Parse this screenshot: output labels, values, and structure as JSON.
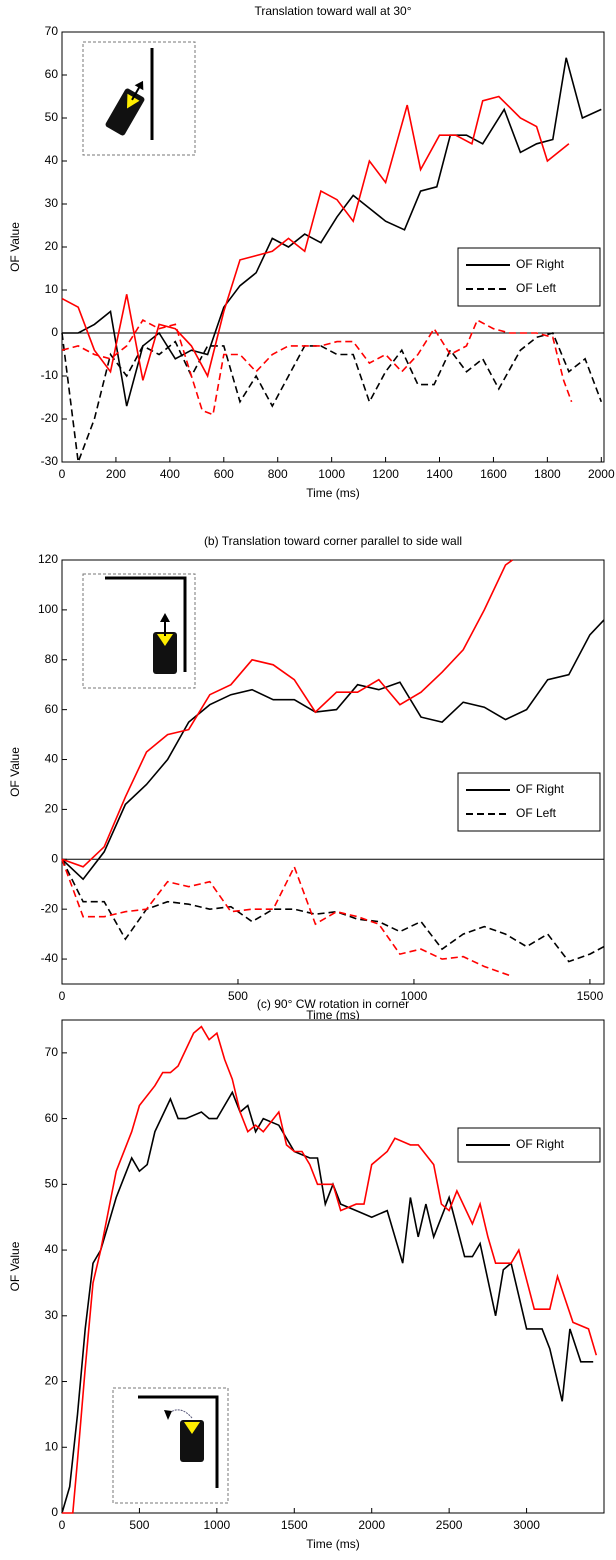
{
  "chart_data": [
    {
      "type": "line",
      "title": "Translation toward wall at 30°",
      "xlabel": "Time (ms)",
      "ylabel": "OF Value",
      "xlim": [
        0,
        2010
      ],
      "ylim": [
        -30,
        70
      ],
      "xticks": [
        0,
        200,
        400,
        600,
        800,
        1000,
        1200,
        1400,
        1600,
        1800,
        2000
      ],
      "yticks": [
        -30,
        -20,
        -10,
        0,
        10,
        20,
        30,
        40,
        50,
        60,
        70
      ],
      "hline": 0,
      "legend": "center right",
      "series": [
        {
          "name": "OF Right",
          "color": "#000000",
          "dash": false,
          "x": [
            0,
            60,
            120,
            180,
            240,
            300,
            360,
            420,
            480,
            540,
            600,
            660,
            720,
            780,
            840,
            900,
            960,
            1020,
            1080,
            1140,
            1200,
            1270,
            1330,
            1390,
            1440,
            1500,
            1560,
            1640,
            1700,
            1760,
            1820,
            1870,
            1930,
            2000
          ],
          "values": [
            0,
            0,
            2,
            5,
            -17,
            -3,
            0,
            -6,
            -4,
            -5,
            6,
            11,
            14,
            22,
            20,
            23,
            21,
            27,
            32,
            29,
            26,
            24,
            33,
            34,
            46,
            46,
            44,
            52,
            42,
            44,
            45,
            64,
            50,
            52
          ]
        },
        {
          "name": "OF Left",
          "color": "#000000",
          "dash": true,
          "x": [
            0,
            60,
            120,
            180,
            240,
            300,
            360,
            420,
            480,
            540,
            600,
            660,
            720,
            780,
            840,
            900,
            960,
            1020,
            1080,
            1140,
            1200,
            1260,
            1320,
            1380,
            1440,
            1500,
            1560,
            1620,
            1700,
            1760,
            1820,
            1880,
            1940,
            2000
          ],
          "values": [
            0,
            -30,
            -20,
            -5,
            -10,
            -3,
            -5,
            -2,
            -10,
            -3,
            -3,
            -16,
            -10,
            -17,
            -10,
            -3,
            -3,
            -5,
            -5,
            -16,
            -9,
            -4,
            -12,
            -12,
            -4,
            -9,
            -6,
            -13,
            -4,
            -1,
            0,
            -9,
            -6,
            -16
          ]
        },
        {
          "color": "#ff0000",
          "dash": false,
          "x": [
            0,
            60,
            120,
            180,
            240,
            300,
            360,
            420,
            480,
            540,
            600,
            660,
            720,
            780,
            840,
            900,
            960,
            1020,
            1080,
            1140,
            1200,
            1280,
            1330,
            1400,
            1460,
            1520,
            1560,
            1620,
            1700,
            1760,
            1800,
            1880
          ],
          "values": [
            8,
            6,
            -4,
            -9,
            9,
            -11,
            2,
            1,
            -3,
            -10,
            5,
            17,
            18,
            19,
            22,
            19,
            33,
            31,
            26,
            40,
            35,
            53,
            38,
            46,
            46,
            44,
            54,
            55,
            50,
            48,
            40,
            44
          ]
        },
        {
          "color": "#ff0000",
          "dash": true,
          "x": [
            0,
            60,
            120,
            180,
            240,
            300,
            360,
            420,
            480,
            520,
            560,
            600,
            660,
            720,
            780,
            840,
            900,
            960,
            1020,
            1080,
            1140,
            1200,
            1260,
            1320,
            1380,
            1440,
            1500,
            1540,
            1600,
            1660,
            1700,
            1760,
            1820,
            1860,
            1890
          ],
          "values": [
            -4,
            -3,
            -5,
            -6,
            -3,
            3,
            1,
            2,
            -10,
            -18,
            -19,
            -5,
            -5,
            -9,
            -5,
            -3,
            -3,
            -3,
            -2,
            -2,
            -7,
            -5,
            -9,
            -5,
            1,
            -5,
            -3,
            3,
            1,
            0,
            0,
            0,
            -1,
            -11,
            -16
          ]
        }
      ]
    },
    {
      "type": "line",
      "title": "(b) Translation toward corner parallel to side wall",
      "xlabel": "Time (ms)",
      "ylabel": "OF Value",
      "xlim": [
        0,
        1540
      ],
      "ylim": [
        -50,
        120
      ],
      "xticks": [
        0,
        500,
        1000,
        1500
      ],
      "yticks": [
        -40,
        -20,
        0,
        20,
        40,
        60,
        80,
        100,
        120
      ],
      "hline": 0,
      "legend": "center right",
      "series": [
        {
          "name": "OF Right",
          "color": "#000000",
          "dash": false,
          "x": [
            0,
            60,
            120,
            180,
            240,
            300,
            360,
            420,
            480,
            540,
            600,
            660,
            720,
            780,
            840,
            900,
            960,
            1020,
            1080,
            1140,
            1200,
            1260,
            1320,
            1380,
            1440,
            1500,
            1540
          ],
          "values": [
            0,
            -8,
            3,
            22,
            30,
            40,
            55,
            62,
            66,
            68,
            64,
            64,
            59,
            60,
            70,
            68,
            71,
            57,
            55,
            63,
            61,
            56,
            60,
            72,
            74,
            90,
            96
          ]
        },
        {
          "name": "OF Left",
          "color": "#000000",
          "dash": true,
          "x": [
            0,
            60,
            120,
            180,
            240,
            300,
            360,
            420,
            480,
            540,
            600,
            660,
            720,
            780,
            840,
            900,
            960,
            1020,
            1080,
            1140,
            1200,
            1260,
            1320,
            1380,
            1440,
            1500,
            1540
          ],
          "values": [
            0,
            -17,
            -17,
            -32,
            -20,
            -17,
            -18,
            -20,
            -19,
            -25,
            -20,
            -20,
            -22,
            -21,
            -24,
            -25,
            -29,
            -25,
            -36,
            -30,
            -27,
            -30,
            -35,
            -30,
            -41,
            -38,
            -35
          ]
        },
        {
          "color": "#ff0000",
          "dash": false,
          "x": [
            0,
            60,
            120,
            180,
            240,
            300,
            360,
            420,
            480,
            540,
            600,
            660,
            720,
            780,
            840,
            900,
            960,
            1020,
            1080,
            1140,
            1200,
            1260,
            1280
          ],
          "values": [
            0,
            -3,
            5,
            25,
            43,
            50,
            52,
            66,
            70,
            80,
            78,
            72,
            59,
            67,
            67,
            72,
            62,
            67,
            75,
            84,
            100,
            118,
            120
          ]
        },
        {
          "color": "#ff0000",
          "dash": true,
          "x": [
            0,
            60,
            120,
            180,
            240,
            300,
            360,
            420,
            480,
            540,
            600,
            660,
            720,
            780,
            840,
            900,
            960,
            1020,
            1080,
            1140,
            1200,
            1280
          ],
          "values": [
            0,
            -23,
            -23,
            -21,
            -20,
            -9,
            -11,
            -9,
            -21,
            -20,
            -20,
            -3,
            -26,
            -21,
            -23,
            -26,
            -38,
            -36,
            -40,
            -39,
            -43,
            -47
          ]
        }
      ]
    },
    {
      "type": "line",
      "title": "(c) 90° CW rotation in corner",
      "xlabel": "Time (ms)",
      "ylabel": "OF Value",
      "xlim": [
        0,
        3500
      ],
      "ylim": [
        0,
        75
      ],
      "xticks": [
        0,
        500,
        1000,
        1500,
        2000,
        2500,
        3000
      ],
      "yticks": [
        0,
        10,
        20,
        30,
        40,
        50,
        60,
        70
      ],
      "legend": "upper right",
      "series": [
        {
          "name": "OF Right",
          "color": "#000000",
          "dash": false,
          "x": [
            0,
            50,
            100,
            150,
            200,
            250,
            300,
            350,
            400,
            450,
            500,
            550,
            600,
            700,
            750,
            800,
            900,
            950,
            1000,
            1100,
            1150,
            1200,
            1250,
            1300,
            1400,
            1500,
            1600,
            1650,
            1700,
            1750,
            1800,
            1900,
            2000,
            2100,
            2200,
            2250,
            2300,
            2350,
            2400,
            2500,
            2600,
            2650,
            2700,
            2800,
            2850,
            2900,
            3000,
            3100,
            3150,
            3230,
            3280,
            3350,
            3430
          ],
          "values": [
            0,
            4,
            15,
            28,
            38,
            40,
            44,
            48,
            51,
            54,
            52,
            53,
            58,
            63,
            60,
            60,
            61,
            60,
            60,
            64,
            61,
            62,
            58,
            60,
            59,
            55,
            54,
            54,
            47,
            50,
            47,
            46,
            45,
            46,
            38,
            48,
            42,
            47,
            42,
            48,
            39,
            39,
            41,
            30,
            37,
            38,
            28,
            28,
            25,
            17,
            28,
            23,
            23
          ]
        },
        {
          "color": "#ff0000",
          "dash": false,
          "x": [
            0,
            70,
            100,
            150,
            200,
            250,
            350,
            450,
            500,
            600,
            650,
            700,
            750,
            850,
            900,
            950,
            1000,
            1050,
            1100,
            1150,
            1200,
            1250,
            1300,
            1400,
            1450,
            1500,
            1550,
            1600,
            1650,
            1750,
            1800,
            1900,
            1950,
            2000,
            2100,
            2150,
            2250,
            2300,
            2400,
            2450,
            2500,
            2550,
            2650,
            2700,
            2750,
            2800,
            2900,
            2950,
            3050,
            3150,
            3200,
            3300,
            3400,
            3450
          ],
          "values": [
            0,
            0,
            8,
            22,
            35,
            40,
            52,
            58,
            62,
            65,
            67,
            67,
            68,
            73,
            74,
            72,
            73,
            69,
            66,
            61,
            58,
            59,
            58,
            61,
            56,
            55,
            55,
            53,
            50,
            50,
            46,
            47,
            47,
            53,
            55,
            57,
            56,
            56,
            53,
            47,
            46,
            49,
            44,
            47,
            42,
            38,
            38,
            40,
            31,
            31,
            36,
            29,
            28,
            24
          ]
        }
      ]
    }
  ]
}
